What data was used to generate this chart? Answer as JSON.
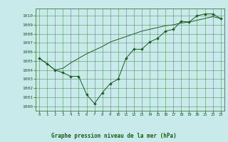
{
  "title": "Graphe pression niveau de la mer (hPa)",
  "background_color": "#c8eaea",
  "grid_color": "#3d7a3d",
  "line_color": "#1a5c1a",
  "xlim": [
    -0.5,
    23.5
  ],
  "ylim": [
    999.5,
    1010.8
  ],
  "yticks": [
    1000,
    1001,
    1002,
    1003,
    1004,
    1005,
    1006,
    1007,
    1008,
    1009,
    1010
  ],
  "xticks": [
    0,
    1,
    2,
    3,
    4,
    5,
    6,
    7,
    8,
    9,
    10,
    11,
    12,
    13,
    14,
    15,
    16,
    17,
    18,
    19,
    20,
    21,
    22,
    23
  ],
  "series1_x": [
    0,
    1,
    2,
    3,
    4,
    5,
    6,
    7,
    8,
    9,
    10,
    11,
    12,
    13,
    14,
    15,
    16,
    17,
    18,
    19,
    20,
    21,
    22,
    23
  ],
  "series1_y": [
    1005.3,
    1004.7,
    1004.0,
    1003.7,
    1003.3,
    1003.3,
    1001.3,
    1000.3,
    1001.5,
    1002.5,
    1003.0,
    1005.3,
    1006.3,
    1006.3,
    1007.1,
    1007.5,
    1008.3,
    1008.5,
    1009.4,
    1009.3,
    1010.0,
    1010.2,
    1010.2,
    1009.7
  ],
  "series2_x": [
    0,
    1,
    2,
    3,
    4,
    5,
    6,
    7,
    8,
    9,
    10,
    11,
    12,
    13,
    14,
    15,
    16,
    17,
    18,
    19,
    20,
    21,
    22,
    23
  ],
  "series2_y": [
    1005.3,
    1004.7,
    1004.0,
    1004.2,
    1004.8,
    1005.3,
    1005.8,
    1006.2,
    1006.6,
    1007.1,
    1007.4,
    1007.7,
    1008.0,
    1008.3,
    1008.5,
    1008.7,
    1008.9,
    1009.0,
    1009.2,
    1009.3,
    1009.5,
    1009.7,
    1009.9,
    1009.7
  ]
}
